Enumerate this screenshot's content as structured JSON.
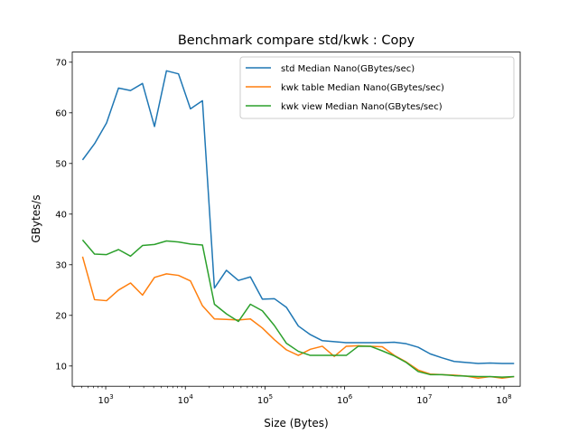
{
  "chart_data": {
    "type": "line",
    "title": "Benchmark compare std/kwk : Copy",
    "xlabel": "Size (Bytes)",
    "ylabel": "GBytes/s",
    "xscale": "log",
    "xlim": [
      380,
      160000000
    ],
    "ylim": [
      6,
      72
    ],
    "x_ticks": [
      {
        "value": 1000,
        "base": "10",
        "exp": "3"
      },
      {
        "value": 10000,
        "base": "10",
        "exp": "4"
      },
      {
        "value": 100000,
        "base": "10",
        "exp": "5"
      },
      {
        "value": 1000000,
        "base": "10",
        "exp": "6"
      },
      {
        "value": 10000000,
        "base": "10",
        "exp": "7"
      },
      {
        "value": 100000000,
        "base": "10",
        "exp": "8"
      }
    ],
    "y_ticks": [
      10,
      20,
      30,
      40,
      50,
      60,
      70
    ],
    "legend_position": "top-right",
    "grid": false,
    "x": [
      512,
      724,
      1024,
      1448,
      2048,
      2896,
      4096,
      5792,
      8192,
      11584,
      16384,
      23168,
      32768,
      46336,
      65536,
      92672,
      131072,
      185344,
      262144,
      370688,
      524288,
      741376,
      1048576,
      1482752,
      2097152,
      2965504,
      4194304,
      5931008,
      8388608,
      11862016,
      16777216,
      23724032,
      33554432,
      47448064,
      67108864,
      94896128,
      134217728
    ],
    "series": [
      {
        "name": "std Median Nano(GBytes/sec)",
        "color": "#1f77b4",
        "values": [
          50.7,
          53.9,
          58.0,
          64.9,
          64.4,
          65.8,
          57.3,
          68.3,
          67.7,
          60.8,
          62.4,
          25.4,
          28.9,
          26.9,
          27.6,
          23.2,
          23.3,
          21.6,
          17.9,
          16.2,
          15.0,
          14.8,
          14.6,
          14.6,
          14.6,
          14.6,
          14.7,
          14.4,
          13.7,
          12.4,
          11.6,
          10.9,
          10.7,
          10.5,
          10.6,
          10.5,
          10.5
        ]
      },
      {
        "name": "kwk table Median Nano(GBytes/sec)",
        "color": "#ff7f0e",
        "values": [
          31.6,
          23.1,
          22.9,
          25.0,
          26.4,
          24.0,
          27.5,
          28.2,
          27.9,
          26.8,
          21.9,
          19.3,
          19.2,
          19.1,
          19.3,
          17.5,
          15.2,
          13.2,
          12.1,
          13.3,
          13.9,
          11.9,
          13.9,
          14.0,
          13.9,
          13.8,
          12.1,
          10.8,
          9.2,
          8.4,
          8.3,
          8.2,
          8.0,
          7.6,
          7.9,
          7.6,
          7.9
        ]
      },
      {
        "name": "kwk view Median Nano(GBytes/sec)",
        "color": "#2ca02c",
        "values": [
          34.9,
          32.1,
          32.0,
          33.0,
          31.7,
          33.8,
          34.0,
          34.7,
          34.5,
          34.1,
          33.9,
          22.2,
          20.3,
          18.8,
          22.2,
          20.9,
          18.0,
          14.5,
          12.9,
          12.1,
          12.1,
          12.1,
          12.1,
          13.9,
          13.9,
          13.0,
          12.0,
          10.7,
          8.9,
          8.3,
          8.3,
          8.1,
          8.0,
          7.9,
          7.9,
          7.8,
          7.9
        ]
      }
    ]
  }
}
